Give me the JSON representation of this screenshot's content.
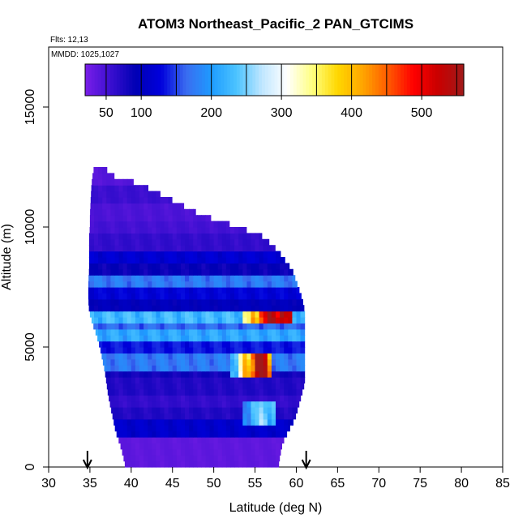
{
  "chart_data": {
    "type": "heatmap",
    "title": "ATOM3 Northeast_Pacific_2 PAN_GTCIMS",
    "flights_label": "Flts: 12,13",
    "date_label": "MMDD: 1025,1027",
    "xlabel": "Latitude (deg N)",
    "ylabel": "Altitude (m)",
    "xlim": [
      30,
      85
    ],
    "ylim": [
      0,
      17500
    ],
    "xticks": [
      "30",
      "35",
      "40",
      "45",
      "50",
      "55",
      "60",
      "65",
      "70",
      "75",
      "80",
      "85"
    ],
    "yticks": [
      "0",
      "5000",
      "10000",
      "15000"
    ],
    "colorbar": {
      "range": [
        20,
        560
      ],
      "ticks": [
        "50",
        "100",
        "200",
        "300",
        "400",
        "500"
      ],
      "colors": [
        "#7a1ee8",
        "#3b0fd0",
        "#0000b4",
        "#0000dc",
        "#3a6cf0",
        "#1e9bff",
        "#4cc4ff",
        "#bfe6ff",
        "#ffffff",
        "#ffff80",
        "#ffd700",
        "#ffa500",
        "#ff5a00",
        "#ff0000",
        "#c80000",
        "#a01a1a"
      ]
    },
    "arrows_at_latitude": [
      34.7,
      61.2
    ],
    "profile_shape": [
      [
        12500,
        35.5,
        36.6
      ],
      [
        12100,
        35.3,
        38.0
      ],
      [
        11800,
        35.2,
        41.0
      ],
      [
        11200,
        35.1,
        44.5
      ],
      [
        10500,
        35.0,
        48.5
      ],
      [
        10000,
        35.0,
        53.0
      ],
      [
        9600,
        34.9,
        56.0
      ],
      [
        9000,
        34.9,
        57.8
      ],
      [
        8200,
        34.9,
        59.5
      ],
      [
        7700,
        34.8,
        60.0
      ],
      [
        7000,
        34.8,
        60.7
      ],
      [
        6500,
        34.9,
        61.0
      ],
      [
        6000,
        35.3,
        61.0
      ],
      [
        5500,
        35.8,
        61.0
      ],
      [
        5000,
        36.2,
        61.0
      ],
      [
        4500,
        36.5,
        61.0
      ],
      [
        4000,
        36.8,
        61.0
      ],
      [
        3500,
        37.0,
        61.0
      ],
      [
        3000,
        37.2,
        60.6
      ],
      [
        2500,
        37.5,
        60.2
      ],
      [
        2000,
        37.8,
        59.8
      ],
      [
        1500,
        38.1,
        59.0
      ],
      [
        1000,
        38.6,
        58.3
      ],
      [
        500,
        39.0,
        58.0
      ],
      [
        0,
        39.3,
        57.8
      ]
    ],
    "altitude_bands": [
      {
        "alt": [
          11600,
          12500
        ],
        "value": 40
      },
      {
        "alt": [
          10800,
          11600
        ],
        "value": 55
      },
      {
        "alt": [
          10200,
          10800
        ],
        "value": 45
      },
      {
        "alt": [
          9600,
          10200
        ],
        "value": 50
      },
      {
        "alt": [
          9000,
          9600
        ],
        "value": 60
      },
      {
        "alt": [
          8400,
          9000
        ],
        "value": 115
      },
      {
        "alt": [
          7800,
          8400
        ],
        "value": 85
      },
      {
        "alt": [
          7300,
          7800
        ],
        "value": 170
      },
      {
        "alt": [
          6900,
          7300
        ],
        "value": 120
      },
      {
        "alt": [
          6500,
          6900
        ],
        "value": 95
      },
      {
        "alt": [
          6000,
          6500
        ],
        "value": 220
      },
      {
        "alt": [
          5600,
          6000
        ],
        "value": 160
      },
      {
        "alt": [
          5100,
          5600
        ],
        "value": 205
      },
      {
        "alt": [
          4700,
          5100
        ],
        "value": 130
      },
      {
        "alt": [
          4000,
          4700
        ],
        "value": 170
      },
      {
        "alt": [
          3600,
          4000
        ],
        "value": 80
      },
      {
        "alt": [
          3000,
          3600
        ],
        "value": 70
      },
      {
        "alt": [
          2500,
          3000
        ],
        "value": 60
      },
      {
        "alt": [
          1800,
          2500
        ],
        "value": 70
      },
      {
        "alt": [
          1200,
          1800
        ],
        "value": 110
      },
      {
        "alt": [
          0,
          1200
        ],
        "value": 35
      }
    ],
    "hot_bands": [
      {
        "alt": [
          6000,
          6500
        ],
        "lat": [
          53.5,
          59.5
        ],
        "values": [
          320,
          400,
          470,
          520,
          540,
          480
        ]
      },
      {
        "alt": [
          3600,
          4700
        ],
        "lat": [
          52.0,
          57.0
        ],
        "values": [
          230,
          300,
          380,
          460,
          560,
          500,
          420
        ]
      },
      {
        "alt": [
          1600,
          2600
        ],
        "lat": [
          53.5,
          57.5
        ],
        "values": [
          190,
          220,
          250,
          220
        ]
      }
    ]
  }
}
